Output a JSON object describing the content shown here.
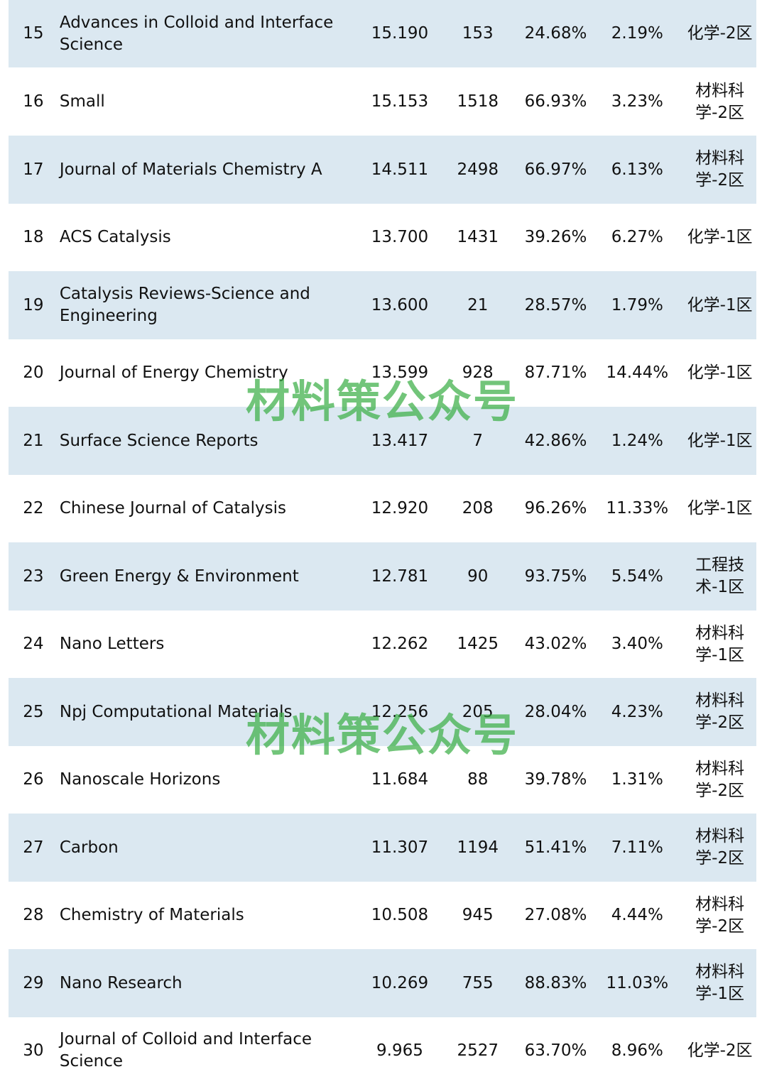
{
  "rows": [
    {
      "rank": "15",
      "title": "Advances in Colloid and Interface Science",
      "impact_factor": "15.190",
      "papers": "153",
      "oa_ratio": "24.68%",
      "self_cite": "2.19%",
      "zone": "化学-2区"
    },
    {
      "rank": "16",
      "title": "Small",
      "impact_factor": "15.153",
      "papers": "1518",
      "oa_ratio": "66.93%",
      "self_cite": "3.23%",
      "zone": "材料科学-2区"
    },
    {
      "rank": "17",
      "title": "Journal of Materials Chemistry A",
      "impact_factor": "14.511",
      "papers": "2498",
      "oa_ratio": "66.97%",
      "self_cite": "6.13%",
      "zone": "材料科学-2区"
    },
    {
      "rank": "18",
      "title": "ACS Catalysis",
      "impact_factor": "13.700",
      "papers": "1431",
      "oa_ratio": "39.26%",
      "self_cite": "6.27%",
      "zone": "化学-1区"
    },
    {
      "rank": "19",
      "title": "Catalysis Reviews-Science and Engineering",
      "impact_factor": "13.600",
      "papers": "21",
      "oa_ratio": "28.57%",
      "self_cite": "1.79%",
      "zone": "化学-1区"
    },
    {
      "rank": "20",
      "title": "Journal of Energy Chemistry",
      "impact_factor": "13.599",
      "papers": "928",
      "oa_ratio": "87.71%",
      "self_cite": "14.44%",
      "zone": "化学-1区"
    },
    {
      "rank": "21",
      "title": "Surface Science Reports",
      "impact_factor": "13.417",
      "papers": "7",
      "oa_ratio": "42.86%",
      "self_cite": "1.24%",
      "zone": "化学-1区"
    },
    {
      "rank": "22",
      "title": "Chinese Journal of Catalysis",
      "impact_factor": "12.920",
      "papers": "208",
      "oa_ratio": "96.26%",
      "self_cite": "11.33%",
      "zone": "化学-1区"
    },
    {
      "rank": "23",
      "title": "Green Energy & Environment",
      "impact_factor": "12.781",
      "papers": "90",
      "oa_ratio": "93.75%",
      "self_cite": "5.54%",
      "zone": "工程技术-1区"
    },
    {
      "rank": "24",
      "title": "Nano Letters",
      "impact_factor": "12.262",
      "papers": "1425",
      "oa_ratio": "43.02%",
      "self_cite": "3.40%",
      "zone": "材料科学-1区"
    },
    {
      "rank": "25",
      "title": "Npj Computational Materials",
      "impact_factor": "12.256",
      "papers": "205",
      "oa_ratio": "28.04%",
      "self_cite": "4.23%",
      "zone": "材料科学-2区"
    },
    {
      "rank": "26",
      "title": "Nanoscale Horizons",
      "impact_factor": "11.684",
      "papers": "88",
      "oa_ratio": "39.78%",
      "self_cite": "1.31%",
      "zone": "材料科学-2区"
    },
    {
      "rank": "27",
      "title": "Carbon",
      "impact_factor": "11.307",
      "papers": "1194",
      "oa_ratio": "51.41%",
      "self_cite": "7.11%",
      "zone": "材料科学-2区"
    },
    {
      "rank": "28",
      "title": "Chemistry of Materials",
      "impact_factor": "10.508",
      "papers": "945",
      "oa_ratio": "27.08%",
      "self_cite": "4.44%",
      "zone": "材料科学-2区"
    },
    {
      "rank": "29",
      "title": "Nano Research",
      "impact_factor": "10.269",
      "papers": "755",
      "oa_ratio": "88.83%",
      "self_cite": "11.03%",
      "zone": "材料科学-1区"
    },
    {
      "rank": "30",
      "title": "Journal of Colloid and Interface Science",
      "impact_factor": "9.965",
      "papers": "2527",
      "oa_ratio": "63.70%",
      "self_cite": "8.96%",
      "zone": "化学-2区"
    }
  ],
  "watermark": "材料策公众号",
  "colors": {
    "row_shade": "#dbe8f1",
    "row_plain": "#ffffff",
    "watermark": "#3caf46"
  }
}
